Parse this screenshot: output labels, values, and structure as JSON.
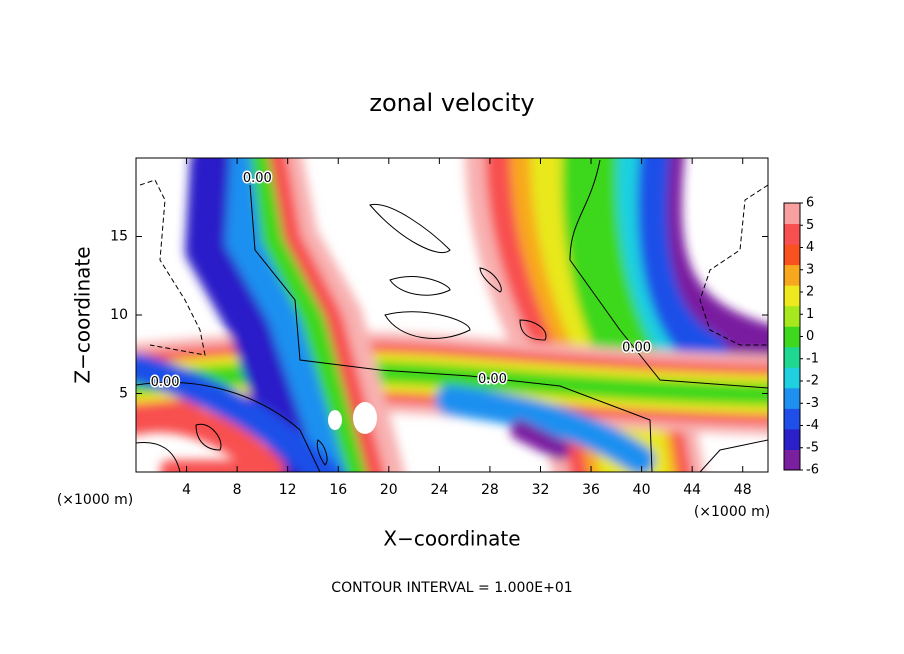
{
  "chart_data": {
    "type": "contour",
    "title": "zonal velocity",
    "x_label": "X−coordinate",
    "y_label": "Z−coordinate",
    "x_unit": "(×1000 m)",
    "xlim": [
      0,
      50
    ],
    "ylim": [
      0,
      20
    ],
    "xticks": [
      4,
      8,
      12,
      16,
      20,
      24,
      28,
      32,
      36,
      40,
      44,
      48
    ],
    "yticks": [
      5,
      10,
      15
    ],
    "colorbar": {
      "ticks": [
        -6,
        -5,
        -4,
        -3,
        -2,
        -1,
        0,
        1,
        2,
        3,
        4,
        5,
        6
      ],
      "colors": [
        "#7a1fa0",
        "#2a1fc8",
        "#1f4fe8",
        "#1f90f0",
        "#1fd0e0",
        "#1fd890",
        "#3ed81f",
        "#a8e81f",
        "#f0e81f",
        "#f8a81f",
        "#f8501f",
        "#f85050",
        "#f8a0a0"
      ]
    },
    "contour_labels": [
      {
        "text": "0.00",
        "x": 9.6,
        "z": 18.7
      },
      {
        "text": "0.00",
        "x": 2.3,
        "z": 5.7
      },
      {
        "text": "0.00",
        "x": 28.2,
        "z": 5.9
      },
      {
        "text": "0.00",
        "x": 39.6,
        "z": 7.9
      }
    ],
    "footnote": "CONTOUR INTERVAL = 1.000E+01"
  }
}
